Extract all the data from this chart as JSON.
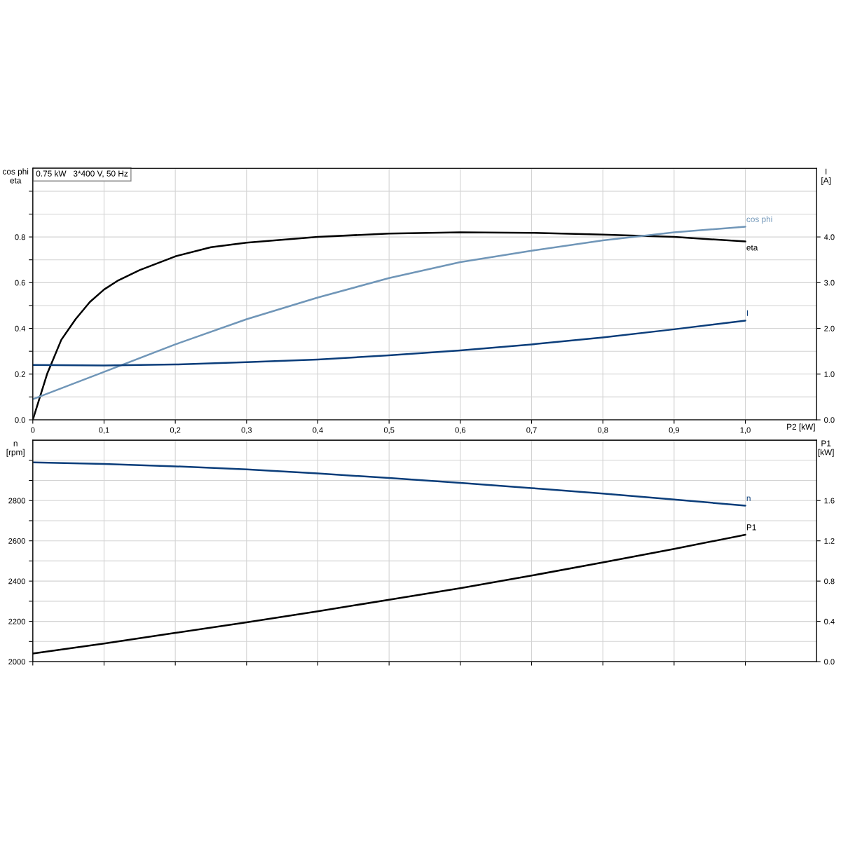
{
  "chart_data": [
    {
      "type": "line",
      "ylabel": "cos phi\neta",
      "y2label": "I\n[A]",
      "xlabel": "P2 [kW]",
      "annotations": [
        "0.75 kW   3*400 V, 50 Hz"
      ],
      "xlim": [
        0,
        1.1
      ],
      "xticks": [
        {
          "value": 0,
          "label": "0"
        },
        {
          "value": 0.1,
          "label": "0,1"
        },
        {
          "value": 0.2,
          "label": "0,2"
        },
        {
          "value": 0.3,
          "label": "0,3"
        },
        {
          "value": 0.4,
          "label": "0,4"
        },
        {
          "value": 0.5,
          "label": "0,5"
        },
        {
          "value": 0.6,
          "label": "0,6"
        },
        {
          "value": 0.7,
          "label": "0,7"
        },
        {
          "value": 0.8,
          "label": "0,8"
        },
        {
          "value": 0.9,
          "label": "0,9"
        },
        {
          "value": 1.0,
          "label": "1,0"
        }
      ],
      "ylim": [
        0,
        1.1
      ],
      "yticks": [
        {
          "value": 0,
          "label": "0.0"
        },
        {
          "value": 0.1,
          "label": null
        },
        0.2,
        {
          "value": 0.3,
          "label": null
        },
        0.4,
        {
          "value": 0.5,
          "label": null
        },
        0.6,
        {
          "value": 0.7,
          "label": null
        },
        0.8,
        {
          "value": 0.9,
          "label": null
        },
        {
          "value": 1.0,
          "label": null
        }
      ],
      "y2lim": [
        0,
        5.5
      ],
      "y2ticks": [
        {
          "value": 0,
          "label": "0.0"
        },
        {
          "value": 1,
          "label": "1.0"
        },
        {
          "value": 2,
          "label": "2.0"
        },
        {
          "value": 3,
          "label": "3.0"
        },
        {
          "value": 4,
          "label": "4.0"
        }
      ],
      "grid": true,
      "legend": false,
      "series": [
        {
          "name": "eta",
          "color": "#000000",
          "x": [
            0,
            0.02,
            0.04,
            0.06,
            0.08,
            0.1,
            0.12,
            0.15,
            0.2,
            0.25,
            0.3,
            0.4,
            0.5,
            0.6,
            0.7,
            0.8,
            0.9,
            1.0
          ],
          "values": [
            0,
            0.2,
            0.35,
            0.44,
            0.515,
            0.57,
            0.61,
            0.655,
            0.715,
            0.755,
            0.775,
            0.8,
            0.815,
            0.82,
            0.818,
            0.81,
            0.8,
            0.78
          ]
        },
        {
          "name": "cos phi",
          "color": "#7096b8",
          "x": [
            0,
            0.1,
            0.2,
            0.3,
            0.4,
            0.5,
            0.6,
            0.7,
            0.8,
            0.9,
            1.0
          ],
          "values": [
            0.09,
            0.21,
            0.33,
            0.44,
            0.535,
            0.62,
            0.69,
            0.74,
            0.785,
            0.82,
            0.845
          ]
        },
        {
          "name": "I",
          "color": "#0a3d7a",
          "axis": "y2",
          "x": [
            0,
            0.1,
            0.2,
            0.3,
            0.4,
            0.5,
            0.6,
            0.7,
            0.8,
            0.9,
            1.0
          ],
          "values": [
            1.2,
            1.19,
            1.21,
            1.26,
            1.32,
            1.41,
            1.52,
            1.65,
            1.8,
            1.98,
            2.17
          ]
        }
      ]
    },
    {
      "type": "line",
      "ylabel": "n\n[rpm]",
      "y2label": "P1\n[kW]",
      "xlim": [
        0,
        1.1
      ],
      "xticks": [
        {
          "value": 0,
          "label": null
        },
        {
          "value": 0.1,
          "label": null
        },
        {
          "value": 0.2,
          "label": null
        },
        {
          "value": 0.3,
          "label": null
        },
        {
          "value": 0.4,
          "label": null
        },
        {
          "value": 0.5,
          "label": null
        },
        {
          "value": 0.6,
          "label": null
        },
        {
          "value": 0.7,
          "label": null
        },
        {
          "value": 0.8,
          "label": null
        },
        {
          "value": 0.9,
          "label": null
        },
        {
          "value": 1.0,
          "label": null
        }
      ],
      "ylim": [
        2000,
        3100
      ],
      "yticks": [
        2000,
        {
          "value": 2100,
          "label": null
        },
        2200,
        {
          "value": 2300,
          "label": null
        },
        2400,
        {
          "value": 2500,
          "label": null
        },
        2600,
        {
          "value": 2700,
          "label": null
        },
        2800,
        {
          "value": 2900,
          "label": null
        },
        {
          "value": 3000,
          "label": null
        }
      ],
      "y2lim": [
        0,
        2.2
      ],
      "y2ticks": [
        {
          "value": 0,
          "label": "0.0"
        },
        0.4,
        0.8,
        1.2,
        1.6
      ],
      "grid": true,
      "legend": false,
      "tick_labels": "y",
      "series": [
        {
          "name": "n",
          "color": "#0a3d7a",
          "x": [
            0,
            0.1,
            0.2,
            0.3,
            0.4,
            0.5,
            0.6,
            0.7,
            0.8,
            0.9,
            1.0
          ],
          "values": [
            2990,
            2982,
            2970,
            2955,
            2935,
            2912,
            2888,
            2862,
            2835,
            2805,
            2775
          ]
        },
        {
          "name": "P1",
          "color": "#000000",
          "axis": "y2",
          "x": [
            0,
            0.1,
            0.2,
            0.3,
            0.4,
            0.5,
            0.6,
            0.7,
            0.8,
            0.9,
            1.0
          ],
          "values": [
            0.08,
            0.18,
            0.285,
            0.39,
            0.5,
            0.615,
            0.73,
            0.855,
            0.985,
            1.12,
            1.26
          ]
        }
      ]
    }
  ]
}
